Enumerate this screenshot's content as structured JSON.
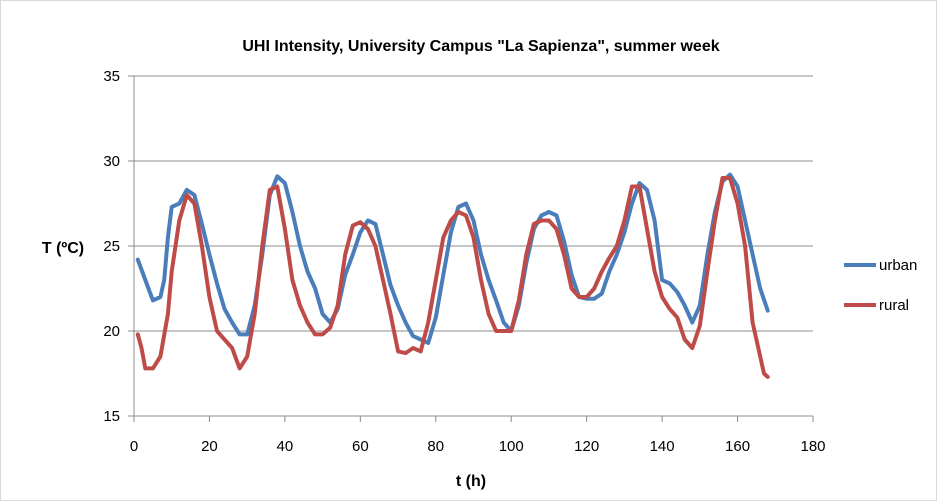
{
  "chart_data": {
    "type": "line",
    "title": "UHI Intensity, University Campus \"La Sapienza\", summer week",
    "xlabel": "t (h)",
    "ylabel": "T (ºC)",
    "xlim": [
      0,
      180
    ],
    "ylim": [
      15,
      35
    ],
    "x_ticks": [
      0,
      20,
      40,
      60,
      80,
      100,
      120,
      140,
      160,
      180
    ],
    "y_ticks": [
      15,
      20,
      25,
      30,
      35
    ],
    "grid": "horizontal",
    "legend_position": "right",
    "series": [
      {
        "name": "urban",
        "color": "#4a7ebb",
        "points": [
          [
            1,
            24.2
          ],
          [
            3,
            23.0
          ],
          [
            5,
            21.8
          ],
          [
            7,
            22.0
          ],
          [
            8,
            23.0
          ],
          [
            9,
            25.5
          ],
          [
            10,
            27.3
          ],
          [
            12,
            27.5
          ],
          [
            14,
            28.3
          ],
          [
            16,
            28.0
          ],
          [
            18,
            26.3
          ],
          [
            20,
            24.5
          ],
          [
            22,
            22.8
          ],
          [
            24,
            21.3
          ],
          [
            26,
            20.5
          ],
          [
            28,
            19.8
          ],
          [
            30,
            19.8
          ],
          [
            32,
            21.5
          ],
          [
            34,
            24.5
          ],
          [
            36,
            28.0
          ],
          [
            38,
            29.1
          ],
          [
            40,
            28.7
          ],
          [
            42,
            27.0
          ],
          [
            44,
            25.0
          ],
          [
            46,
            23.5
          ],
          [
            48,
            22.5
          ],
          [
            50,
            21.0
          ],
          [
            52,
            20.5
          ],
          [
            54,
            21.3
          ],
          [
            56,
            23.3
          ],
          [
            58,
            24.5
          ],
          [
            60,
            25.8
          ],
          [
            62,
            26.5
          ],
          [
            64,
            26.3
          ],
          [
            66,
            24.5
          ],
          [
            68,
            22.7
          ],
          [
            70,
            21.5
          ],
          [
            72,
            20.5
          ],
          [
            74,
            19.7
          ],
          [
            76,
            19.5
          ],
          [
            78,
            19.3
          ],
          [
            80,
            20.8
          ],
          [
            82,
            23.3
          ],
          [
            84,
            25.8
          ],
          [
            86,
            27.3
          ],
          [
            88,
            27.5
          ],
          [
            90,
            26.5
          ],
          [
            92,
            24.5
          ],
          [
            94,
            23.0
          ],
          [
            96,
            21.8
          ],
          [
            98,
            20.5
          ],
          [
            100,
            20.0
          ],
          [
            102,
            21.5
          ],
          [
            104,
            24.0
          ],
          [
            106,
            26.0
          ],
          [
            108,
            26.8
          ],
          [
            110,
            27.0
          ],
          [
            112,
            26.8
          ],
          [
            114,
            25.3
          ],
          [
            116,
            23.3
          ],
          [
            118,
            22.0
          ],
          [
            120,
            21.9
          ],
          [
            122,
            21.9
          ],
          [
            124,
            22.2
          ],
          [
            126,
            23.5
          ],
          [
            128,
            24.5
          ],
          [
            130,
            25.8
          ],
          [
            132,
            27.5
          ],
          [
            134,
            28.7
          ],
          [
            136,
            28.3
          ],
          [
            138,
            26.5
          ],
          [
            140,
            23.0
          ],
          [
            142,
            22.8
          ],
          [
            144,
            22.3
          ],
          [
            146,
            21.5
          ],
          [
            148,
            20.5
          ],
          [
            150,
            21.5
          ],
          [
            152,
            24.5
          ],
          [
            154,
            27.0
          ],
          [
            156,
            28.8
          ],
          [
            158,
            29.2
          ],
          [
            160,
            28.5
          ],
          [
            162,
            26.5
          ],
          [
            164,
            24.5
          ],
          [
            166,
            22.5
          ],
          [
            168,
            21.2
          ]
        ]
      },
      {
        "name": "rural",
        "color": "#be4b48",
        "points": [
          [
            1,
            19.8
          ],
          [
            2,
            19.0
          ],
          [
            3,
            17.8
          ],
          [
            5,
            17.8
          ],
          [
            7,
            18.5
          ],
          [
            9,
            21.0
          ],
          [
            10,
            23.5
          ],
          [
            12,
            26.5
          ],
          [
            14,
            28.0
          ],
          [
            16,
            27.5
          ],
          [
            18,
            25.0
          ],
          [
            20,
            22.0
          ],
          [
            22,
            20.0
          ],
          [
            24,
            19.5
          ],
          [
            26,
            19.0
          ],
          [
            28,
            17.8
          ],
          [
            30,
            18.5
          ],
          [
            32,
            21.0
          ],
          [
            34,
            25.0
          ],
          [
            36,
            28.3
          ],
          [
            38,
            28.5
          ],
          [
            40,
            26.0
          ],
          [
            42,
            23.0
          ],
          [
            44,
            21.5
          ],
          [
            46,
            20.5
          ],
          [
            48,
            19.8
          ],
          [
            50,
            19.8
          ],
          [
            52,
            20.2
          ],
          [
            54,
            21.5
          ],
          [
            56,
            24.5
          ],
          [
            58,
            26.2
          ],
          [
            60,
            26.4
          ],
          [
            62,
            26.0
          ],
          [
            64,
            25.0
          ],
          [
            66,
            23.0
          ],
          [
            68,
            21.0
          ],
          [
            70,
            18.8
          ],
          [
            72,
            18.7
          ],
          [
            74,
            19.0
          ],
          [
            76,
            18.8
          ],
          [
            78,
            20.5
          ],
          [
            80,
            23.0
          ],
          [
            82,
            25.5
          ],
          [
            84,
            26.5
          ],
          [
            86,
            27.0
          ],
          [
            88,
            26.8
          ],
          [
            90,
            25.5
          ],
          [
            92,
            23.0
          ],
          [
            94,
            21.0
          ],
          [
            96,
            20.0
          ],
          [
            98,
            20.0
          ],
          [
            100,
            20.0
          ],
          [
            102,
            21.8
          ],
          [
            104,
            24.5
          ],
          [
            106,
            26.3
          ],
          [
            108,
            26.5
          ],
          [
            110,
            26.5
          ],
          [
            112,
            26.0
          ],
          [
            114,
            24.5
          ],
          [
            116,
            22.5
          ],
          [
            118,
            22.0
          ],
          [
            120,
            22.0
          ],
          [
            122,
            22.5
          ],
          [
            124,
            23.5
          ],
          [
            126,
            24.3
          ],
          [
            128,
            25.0
          ],
          [
            130,
            26.5
          ],
          [
            132,
            28.5
          ],
          [
            134,
            28.5
          ],
          [
            136,
            26.0
          ],
          [
            138,
            23.5
          ],
          [
            140,
            22.0
          ],
          [
            142,
            21.3
          ],
          [
            144,
            20.8
          ],
          [
            146,
            19.5
          ],
          [
            148,
            19.0
          ],
          [
            150,
            20.3
          ],
          [
            152,
            23.5
          ],
          [
            154,
            26.5
          ],
          [
            156,
            29.0
          ],
          [
            158,
            29.0
          ],
          [
            160,
            27.5
          ],
          [
            162,
            25.0
          ],
          [
            164,
            20.5
          ],
          [
            166,
            18.5
          ],
          [
            167,
            17.5
          ],
          [
            168,
            17.3
          ]
        ]
      }
    ]
  }
}
